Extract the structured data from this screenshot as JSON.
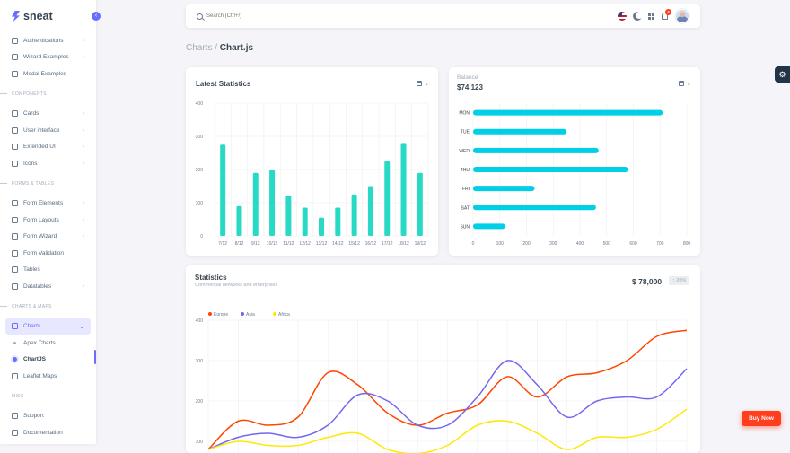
{
  "brand": {
    "name": "sneat"
  },
  "sidebar": {
    "items_top": [
      {
        "label": "Authentications",
        "icon": "lock-icon",
        "chev": "›"
      },
      {
        "label": "Wizard Examples",
        "icon": "spreadsheet-icon",
        "chev": "›"
      },
      {
        "label": "Modal Examples",
        "icon": "window-icon",
        "chev": ""
      }
    ],
    "sections": [
      {
        "header": "COMPONENTS",
        "items": [
          {
            "label": "Cards",
            "icon": "card-icon",
            "chev": "›"
          },
          {
            "label": "User interface",
            "icon": "box-icon",
            "chev": "›"
          },
          {
            "label": "Extended UI",
            "icon": "copy-icon",
            "chev": "›"
          },
          {
            "label": "Icons",
            "icon": "crown-icon",
            "chev": "›"
          }
        ]
      },
      {
        "header": "FORMS & TABLES",
        "items": [
          {
            "label": "Form Elements",
            "icon": "detail-icon",
            "chev": "›"
          },
          {
            "label": "Form Layouts",
            "icon": "detail-icon",
            "chev": "›"
          },
          {
            "label": "Form Wizard",
            "icon": "carousel-icon",
            "chev": "›"
          },
          {
            "label": "Form Validation",
            "icon": "list-check-icon",
            "chev": ""
          },
          {
            "label": "Tables",
            "icon": "table-icon",
            "chev": ""
          },
          {
            "label": "Datatables",
            "icon": "grid-icon",
            "chev": "›"
          }
        ]
      },
      {
        "header": "CHARTS & MAPS",
        "items": []
      }
    ],
    "charts": {
      "label": "Charts",
      "chev": "⌄",
      "sub": [
        "Apex Charts",
        "ChartJS"
      ]
    },
    "leaflet": "Leaflet Maps",
    "misc_header": "MISC",
    "misc_items": [
      "Support",
      "Documentation"
    ]
  },
  "navbar": {
    "search_placeholder": "Search (Ctrl+/)",
    "notifications": "4"
  },
  "breadcrumb": {
    "parent": "Charts /",
    "current": "Chart.js"
  },
  "colors": {
    "primary": "#696cff",
    "teal": "#28dac6",
    "cyan": "#00cfe8",
    "red": "#ff4500",
    "blue": "#7367f0",
    "yellow": "#ffe802",
    "buy": "#ff3e1d"
  },
  "buy_now": "Buy Now",
  "chart_data": [
    {
      "type": "bar",
      "title": "Latest Statistics",
      "categories": [
        "7/12",
        "8/12",
        "9/12",
        "10/12",
        "11/12",
        "12/12",
        "13/12",
        "14/12",
        "15/12",
        "16/12",
        "17/12",
        "18/12",
        "19/12"
      ],
      "values": [
        275,
        90,
        190,
        200,
        120,
        85,
        55,
        85,
        125,
        150,
        225,
        280,
        190
      ],
      "ylim": [
        0,
        400
      ],
      "yticks": [
        0,
        100,
        200,
        300,
        400
      ]
    },
    {
      "type": "bar",
      "orientation": "horizontal",
      "label": "Balance",
      "value": "$74,123",
      "categories": [
        "MON",
        "TUE",
        "WED",
        "THU",
        "FRI",
        "SAT",
        "SUN"
      ],
      "values": [
        710,
        350,
        470,
        580,
        230,
        460,
        120
      ],
      "xlim": [
        0,
        800
      ],
      "xticks": [
        0,
        100,
        200,
        300,
        400,
        500,
        600,
        700,
        800
      ]
    },
    {
      "type": "line",
      "title": "Statistics",
      "subtitle": "Commercial networks and enterprises",
      "amount": "$ 78,000",
      "change": "↑ 20%",
      "ylim": [
        0,
        400
      ],
      "yticks": [
        100,
        200,
        300,
        400
      ],
      "series": [
        {
          "name": "Europe",
          "color": "#ff4500",
          "values": [
            80,
            150,
            140,
            160,
            270,
            240,
            170,
            140,
            170,
            190,
            260,
            210,
            260,
            270,
            300,
            360,
            375
          ]
        },
        {
          "name": "Asia",
          "color": "#7367f0",
          "values": [
            80,
            110,
            120,
            110,
            140,
            215,
            200,
            140,
            140,
            210,
            300,
            240,
            160,
            200,
            210,
            210,
            280
          ]
        },
        {
          "name": "Africa",
          "color": "#ffe802",
          "values": [
            80,
            100,
            90,
            90,
            110,
            120,
            80,
            70,
            90,
            140,
            150,
            120,
            80,
            110,
            110,
            130,
            180
          ]
        }
      ]
    }
  ]
}
